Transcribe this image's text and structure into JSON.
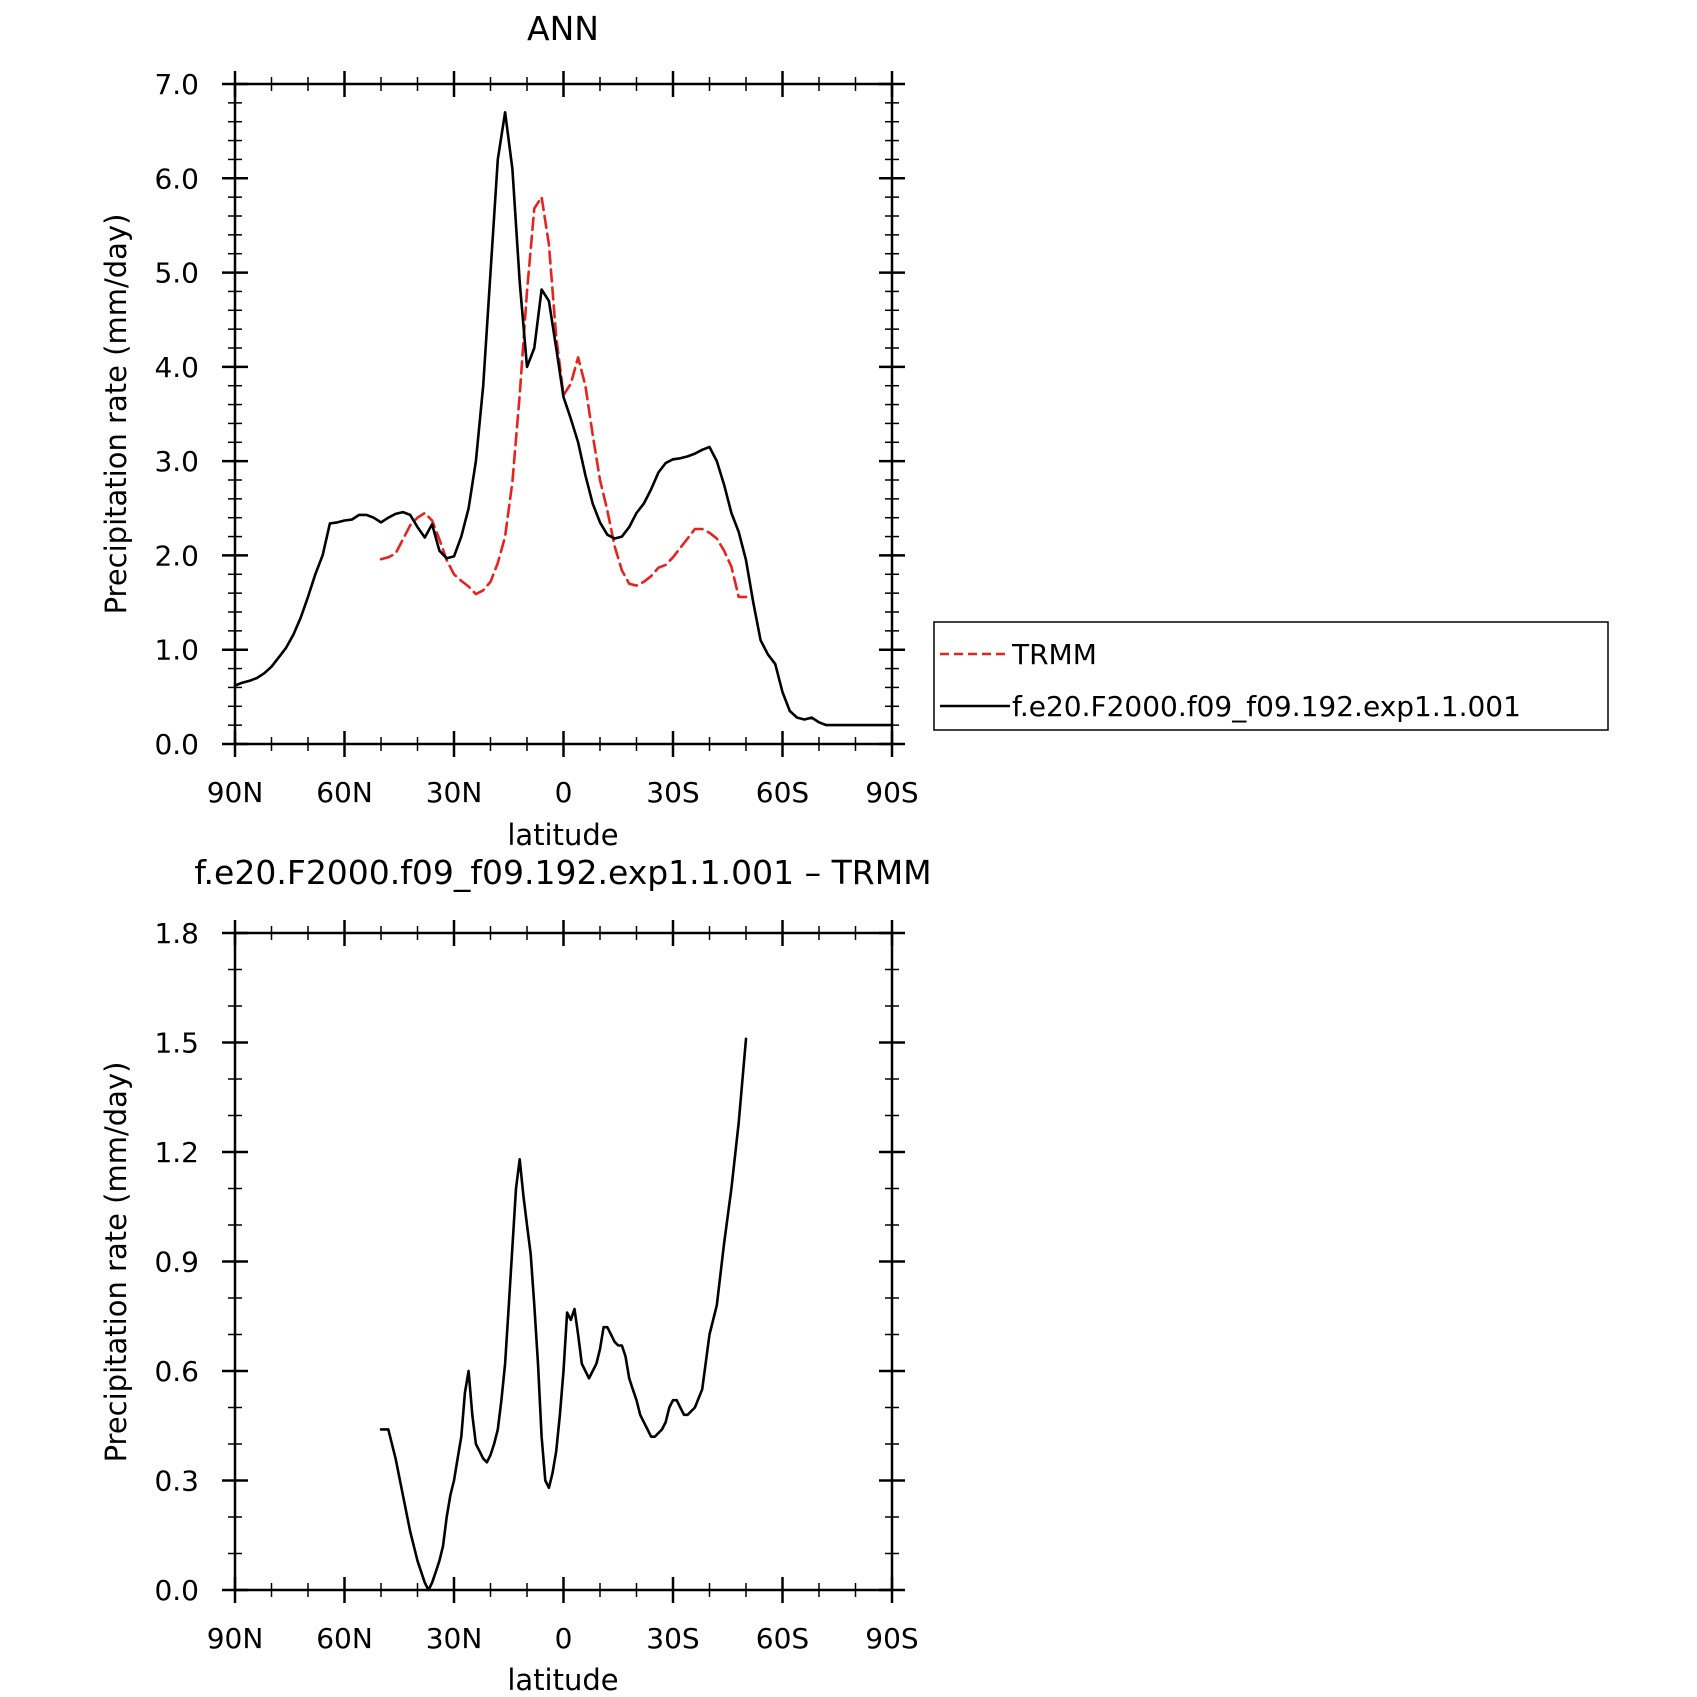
{
  "chart_data": [
    {
      "type": "line",
      "title": "ANN",
      "xlabel": "latitude",
      "ylabel": "Precipitation rate (mm/day)",
      "xlim": [
        90,
        -90
      ],
      "ylim": [
        0,
        7
      ],
      "x_tick_values": [
        90,
        60,
        30,
        0,
        -30,
        -60,
        -90
      ],
      "x_tick_labels": [
        "90N",
        "60N",
        "30N",
        "0",
        "30S",
        "60S",
        "90S"
      ],
      "y_tick_values": [
        0,
        1,
        2,
        3,
        4,
        5,
        6,
        7
      ],
      "y_tick_labels": [
        "0.0",
        "1.0",
        "2.0",
        "3.0",
        "4.0",
        "5.0",
        "6.0",
        "7.0"
      ],
      "grid": false,
      "legend_position": "right",
      "series": [
        {
          "name": "TRMM",
          "color": "#e8221f",
          "dash": "dashed",
          "x": [
            50,
            48,
            46,
            44,
            42,
            40,
            38,
            36,
            34,
            32,
            30,
            28,
            26,
            24,
            22,
            20,
            18,
            16,
            14,
            12,
            10,
            8,
            6,
            4,
            2,
            0,
            -2,
            -4,
            -6,
            -8,
            -10,
            -12,
            -14,
            -16,
            -18,
            -20,
            -22,
            -24,
            -26,
            -28,
            -30,
            -32,
            -34,
            -36,
            -38,
            -40,
            -42,
            -44,
            -46,
            -48,
            -50
          ],
          "y": [
            1.96,
            1.98,
            2.02,
            2.17,
            2.32,
            2.4,
            2.45,
            2.37,
            2.17,
            1.95,
            1.8,
            1.73,
            1.67,
            1.59,
            1.63,
            1.72,
            1.92,
            2.2,
            2.78,
            3.7,
            4.8,
            5.68,
            5.8,
            5.3,
            4.32,
            3.7,
            3.82,
            4.1,
            3.8,
            3.28,
            2.8,
            2.48,
            2.1,
            1.84,
            1.7,
            1.68,
            1.72,
            1.78,
            1.87,
            1.9,
            1.98,
            2.08,
            2.18,
            2.28,
            2.28,
            2.24,
            2.18,
            2.05,
            1.88,
            1.56,
            1.56
          ]
        },
        {
          "name": "f.e20.F2000.f09_f09.192.exp1.1.001",
          "color": "#000000",
          "dash": "solid",
          "x": [
            90,
            88,
            86,
            84,
            82,
            80,
            78,
            76,
            74,
            72,
            70,
            68,
            66,
            64,
            62,
            60,
            58,
            56,
            54,
            52,
            50,
            48,
            46,
            44,
            42,
            40,
            38,
            36,
            34,
            32,
            30,
            28,
            26,
            24,
            22,
            20,
            18,
            16,
            14,
            12,
            10,
            8,
            6,
            4,
            2,
            0,
            -2,
            -4,
            -6,
            -8,
            -10,
            -12,
            -14,
            -16,
            -18,
            -20,
            -22,
            -24,
            -26,
            -28,
            -30,
            -32,
            -34,
            -36,
            -38,
            -40,
            -42,
            -44,
            -46,
            -48,
            -50,
            -52,
            -54,
            -56,
            -58,
            -60,
            -62,
            -64,
            -66,
            -68,
            -70,
            -72,
            -74,
            -76,
            -78,
            -80,
            -82,
            -84,
            -86,
            -88,
            -90
          ],
          "y": [
            0.62,
            0.65,
            0.67,
            0.7,
            0.75,
            0.82,
            0.92,
            1.02,
            1.16,
            1.34,
            1.56,
            1.8,
            2.0,
            2.34,
            2.35,
            2.37,
            2.38,
            2.43,
            2.43,
            2.4,
            2.35,
            2.4,
            2.44,
            2.46,
            2.43,
            2.3,
            2.19,
            2.33,
            2.05,
            1.97,
            1.99,
            2.2,
            2.5,
            3.0,
            3.8,
            5.0,
            6.2,
            6.7,
            6.1,
            4.9,
            4.0,
            4.2,
            4.82,
            4.7,
            4.2,
            3.68,
            3.45,
            3.2,
            2.85,
            2.55,
            2.35,
            2.22,
            2.18,
            2.2,
            2.3,
            2.45,
            2.55,
            2.7,
            2.88,
            2.98,
            3.02,
            3.03,
            3.05,
            3.08,
            3.12,
            3.15,
            3.0,
            2.75,
            2.45,
            2.25,
            1.95,
            1.5,
            1.1,
            0.95,
            0.85,
            0.55,
            0.35,
            0.28,
            0.26,
            0.28,
            0.23,
            0.2,
            0.2,
            0.2,
            0.2,
            0.2,
            0.2,
            0.2,
            0.2,
            0.2,
            0.2
          ]
        }
      ]
    },
    {
      "type": "line",
      "title": "f.e20.F2000.f09_f09.192.exp1.1.001 – TRMM",
      "xlabel": "latitude",
      "ylabel": "Precipitation rate (mm/day)",
      "xlim": [
        90,
        -90
      ],
      "ylim": [
        0,
        1.8
      ],
      "x_tick_values": [
        90,
        60,
        30,
        0,
        -30,
        -60,
        -90
      ],
      "x_tick_labels": [
        "90N",
        "60N",
        "30N",
        "0",
        "30S",
        "60S",
        "90S"
      ],
      "y_tick_values": [
        0,
        0.3,
        0.6,
        0.9,
        1.2,
        1.5,
        1.8
      ],
      "y_tick_labels": [
        "0.0",
        "0.3",
        "0.6",
        "0.9",
        "1.2",
        "1.5",
        "1.8"
      ],
      "grid": false,
      "series": [
        {
          "color": "#000000",
          "dash": "solid",
          "x": [
            50,
            48,
            46,
            44,
            42,
            40,
            38,
            37,
            36,
            35,
            34,
            33,
            32,
            31,
            30,
            29,
            28,
            27,
            26,
            25,
            24,
            23,
            22,
            21,
            20,
            19,
            18,
            17,
            16,
            15,
            14,
            13,
            12,
            11,
            10,
            9,
            8,
            7,
            6,
            5,
            4,
            3,
            2,
            1,
            0,
            -1,
            -2,
            -3,
            -4,
            -5,
            -6,
            -7,
            -8,
            -9,
            -10,
            -11,
            -12,
            -13,
            -14,
            -15,
            -16,
            -17,
            -18,
            -19,
            -20,
            -21,
            -22,
            -23,
            -24,
            -25,
            -26,
            -27,
            -28,
            -29,
            -30,
            -31,
            -32,
            -33,
            -34,
            -36,
            -38,
            -40,
            -42,
            -44,
            -46,
            -48,
            -50
          ],
          "y": [
            0.44,
            0.44,
            0.36,
            0.26,
            0.16,
            0.08,
            0.02,
            0.0,
            0.02,
            0.05,
            0.08,
            0.12,
            0.2,
            0.26,
            0.3,
            0.36,
            0.42,
            0.54,
            0.6,
            0.48,
            0.4,
            0.38,
            0.36,
            0.35,
            0.37,
            0.4,
            0.44,
            0.52,
            0.62,
            0.78,
            0.94,
            1.1,
            1.18,
            1.08,
            1.0,
            0.92,
            0.78,
            0.62,
            0.42,
            0.3,
            0.28,
            0.32,
            0.38,
            0.48,
            0.6,
            0.76,
            0.74,
            0.77,
            0.7,
            0.62,
            0.6,
            0.58,
            0.6,
            0.62,
            0.66,
            0.72,
            0.72,
            0.7,
            0.68,
            0.67,
            0.67,
            0.64,
            0.58,
            0.55,
            0.52,
            0.48,
            0.46,
            0.44,
            0.42,
            0.42,
            0.43,
            0.44,
            0.46,
            0.5,
            0.52,
            0.52,
            0.5,
            0.48,
            0.48,
            0.5,
            0.55,
            0.7,
            0.78,
            0.95,
            1.1,
            1.28,
            1.51
          ]
        }
      ]
    }
  ]
}
